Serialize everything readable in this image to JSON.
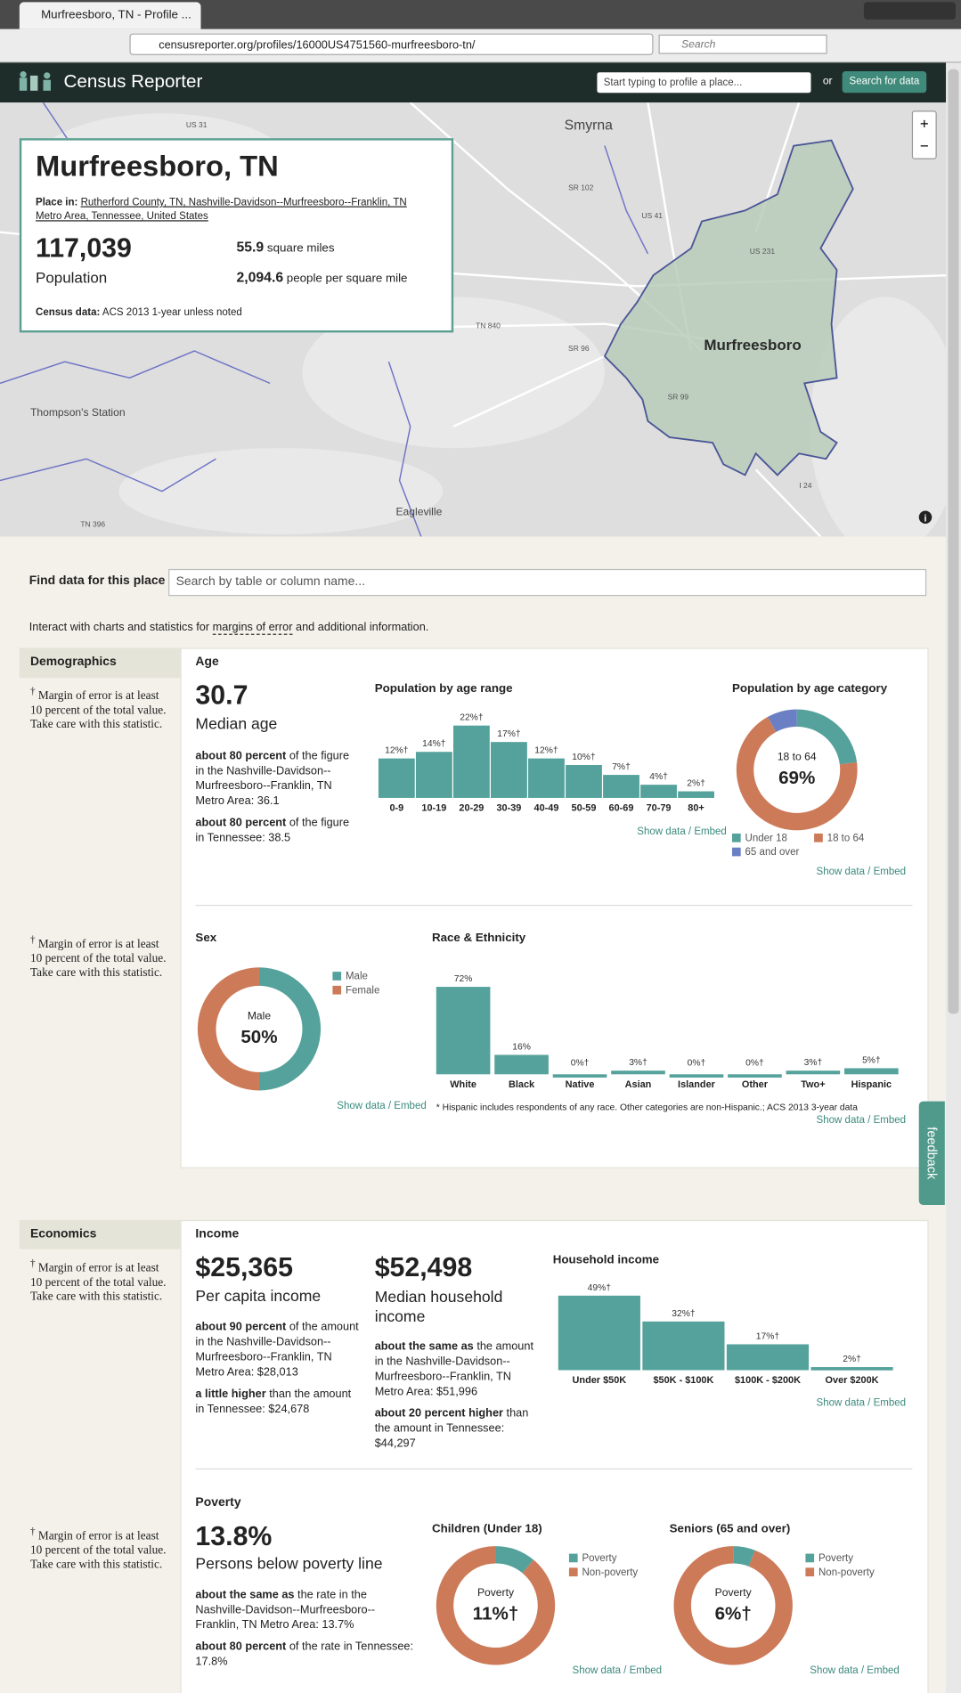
{
  "browser": {
    "tab_title": "Murfreesboro, TN - Profile ...",
    "url": "censusreporter.org/profiles/16000US4751560-murfreesboro-tn/",
    "search_placeholder": "Search"
  },
  "header": {
    "brand": "Census Reporter",
    "search_placeholder": "Start typing to profile a place...",
    "or": "or",
    "search_button": "Search for data"
  },
  "map": {
    "labels": [
      "Smyrna",
      "Murfreesboro",
      "Thompson's Station",
      "Eagleville"
    ],
    "road_labels": [
      "US 31",
      "SR 102",
      "US 41",
      "US 231",
      "TN 840",
      "SR 96",
      "SR 99",
      "I 24",
      "TN 396"
    ],
    "zoom_in": "+",
    "zoom_out": "−",
    "info": "i"
  },
  "profile": {
    "name": "Murfreesboro, TN",
    "place_in_label": "Place in:",
    "place_in": "Rutherford County, TN, Nashville-Davidson--Murfreesboro--Franklin, TN Metro Area, Tennessee, United States",
    "population": "117,039",
    "population_label": "Population",
    "area": "55.9",
    "area_label": "square miles",
    "density": "2,094.6",
    "density_label": "people per square mile",
    "census_label": "Census data:",
    "census_value": "ACS 2013 1-year unless noted"
  },
  "find_data": {
    "label": "Find data for this place",
    "placeholder": "Search by table or column name..."
  },
  "interact": {
    "before": "Interact with charts and statistics for",
    "link": "margins of error",
    "after": "and additional information."
  },
  "moe": {
    "dagger": "†",
    "note": "Margin of error is at least 10 percent of the total value. Take care with this statistic."
  },
  "show_data": "Show data / Embed",
  "demographics": {
    "label": "Demographics",
    "age": {
      "title": "Age",
      "value": "30.7",
      "caption": "Median age",
      "comparisons": [
        {
          "bold": "about 80 percent",
          "rest": "of the figure in the Nashville-Davidson--Murfreesboro--Franklin, TN Metro Area: 36.1"
        },
        {
          "bold": "about 80 percent",
          "rest": "of the figure in Tennessee: 38.5"
        }
      ]
    },
    "age_range": {
      "type": "bar",
      "title": "Population by age range",
      "categories": [
        "0-9",
        "10-19",
        "20-29",
        "30-39",
        "40-49",
        "50-59",
        "60-69",
        "70-79",
        "80+"
      ],
      "values": [
        12,
        14,
        22,
        17,
        12,
        10,
        7,
        4,
        2
      ],
      "value_labels": [
        "12%†",
        "14%†",
        "22%†",
        "17%†",
        "12%†",
        "10%†",
        "7%†",
        "4%†",
        "2%†"
      ],
      "color": "#54a29b"
    },
    "age_category": {
      "type": "donut",
      "title": "Population by age category",
      "categories": [
        "Under 18",
        "18 to 64",
        "65 and over"
      ],
      "values": [
        23,
        69,
        8
      ],
      "value_labels": [
        null,
        "69%",
        null
      ],
      "colors": [
        "#54a29b",
        "#cc7a58",
        "#6b80c4"
      ]
    },
    "sex": {
      "type": "donut",
      "title": "Sex",
      "categories": [
        "Male",
        "Female"
      ],
      "values": [
        50,
        50
      ],
      "value_labels": [
        "50%",
        null
      ],
      "colors": [
        "#54a29b",
        "#cc7a58"
      ]
    },
    "race": {
      "type": "bar",
      "title": "Race & Ethnicity",
      "categories": [
        "White",
        "Black",
        "Native",
        "Asian",
        "Islander",
        "Other",
        "Two+",
        "Hispanic"
      ],
      "values": [
        72,
        16,
        0,
        3,
        0,
        0,
        3,
        5
      ],
      "value_labels": [
        "72%",
        "16%",
        "0%†",
        "3%†",
        "0%†",
        "0%†",
        "3%†",
        "5%†"
      ],
      "color": "#54a29b",
      "footnote": "* Hispanic includes respondents of any race. Other categories are non-Hispanic.; ACS 2013 3-year data"
    }
  },
  "economics": {
    "label": "Economics",
    "income": {
      "title": "Income",
      "per_capita": {
        "value": "$25,365",
        "caption": "Per capita income",
        "comparisons": [
          {
            "bold": "about 90 percent",
            "rest": "of the amount in the Nashville-Davidson--Murfreesboro--Franklin, TN Metro Area: $28,013"
          },
          {
            "bold": "a little higher",
            "rest": "than the amount in Tennessee: $24,678"
          }
        ]
      },
      "median_household": {
        "value": "$52,498",
        "caption": "Median household income",
        "comparisons": [
          {
            "bold": "about the same as",
            "rest": "the amount in the Nashville-Davidson--Murfreesboro--Franklin, TN Metro Area: $51,996"
          },
          {
            "bold": "about 20 percent higher",
            "rest": "than the amount in Tennessee: $44,297"
          }
        ]
      },
      "household_income": {
        "type": "bar",
        "title": "Household income",
        "categories": [
          "Under $50K",
          "$50K - $100K",
          "$100K - $200K",
          "Over $200K"
        ],
        "values": [
          49,
          32,
          17,
          2
        ],
        "value_labels": [
          "49%†",
          "32%†",
          "17%†",
          "2%†"
        ],
        "color": "#54a29b"
      }
    },
    "poverty": {
      "title": "Poverty",
      "value": "13.8%",
      "caption": "Persons below poverty line",
      "comparisons": [
        {
          "bold": "about the same as",
          "rest": "the rate in the Nashville-Davidson--Murfreesboro--Franklin, TN Metro Area: 13.7%"
        },
        {
          "bold": "about 80 percent",
          "rest": "of the rate in Tennessee: 17.8%"
        }
      ],
      "children": {
        "type": "donut",
        "title": "Children (Under 18)",
        "categories": [
          "Poverty",
          "Non-poverty"
        ],
        "values": [
          11,
          89
        ],
        "value_labels": [
          "11%†",
          null
        ],
        "colors": [
          "#54a29b",
          "#cc7a58"
        ]
      },
      "seniors": {
        "type": "donut",
        "title": "Seniors (65 and over)",
        "categories": [
          "Poverty",
          "Non-poverty"
        ],
        "values": [
          6,
          94
        ],
        "value_labels": [
          "6%†",
          null
        ],
        "colors": [
          "#54a29b",
          "#cc7a58"
        ]
      }
    }
  },
  "feedback": "feedback"
}
